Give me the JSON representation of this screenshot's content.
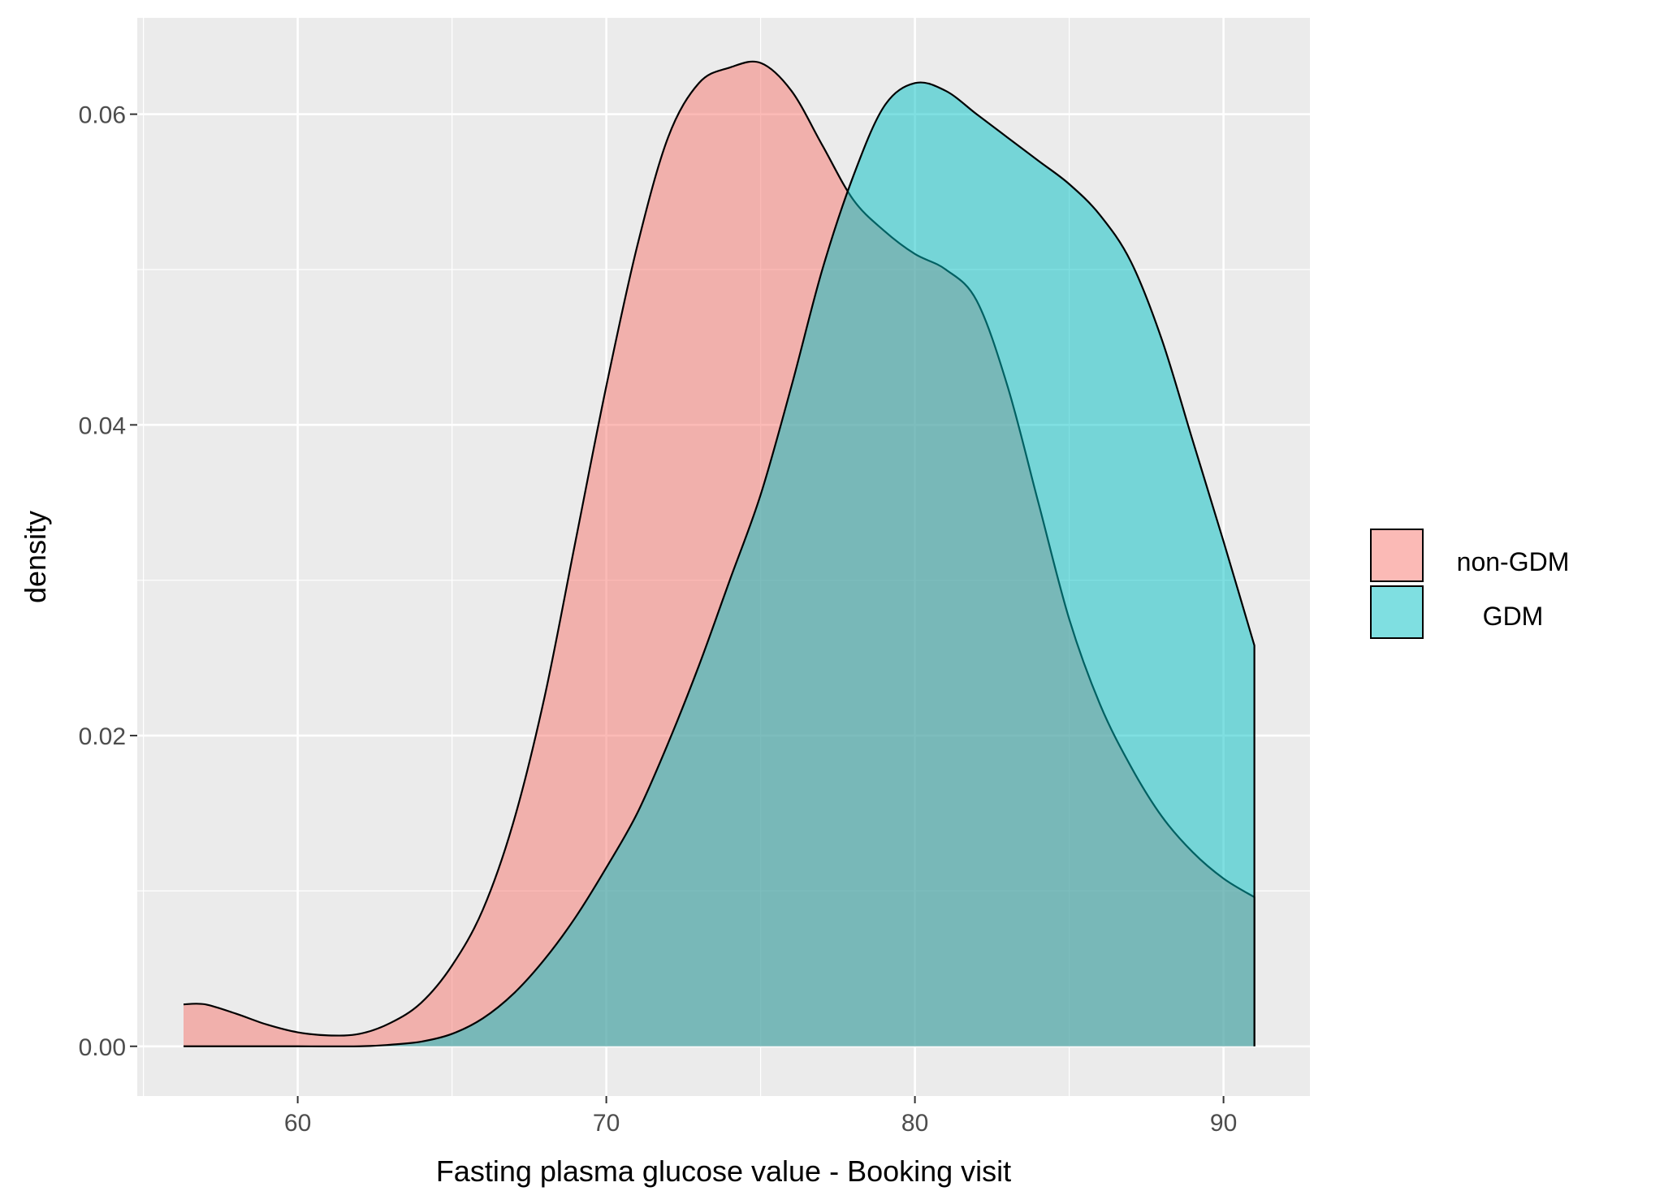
{
  "chart_data": {
    "type": "area",
    "xlabel": "Fasting plasma glucose value - Booking visit",
    "ylabel": "density",
    "xlim": [
      54.8,
      92.8
    ],
    "ylim": [
      -0.0032,
      0.0662
    ],
    "x_ticks": [
      60,
      70,
      80,
      90
    ],
    "x_tick_labels": [
      "60",
      "70",
      "80",
      "90"
    ],
    "y_ticks": [
      0.0,
      0.02,
      0.04,
      0.06
    ],
    "y_tick_labels": [
      "0.00",
      "0.02",
      "0.04",
      "0.06"
    ],
    "grid": true,
    "legend_position": "right",
    "series": [
      {
        "name": "non-GDM",
        "color": "#F8766D",
        "x": [
          56.3,
          57.0,
          58.0,
          59.0,
          60.0,
          61.0,
          62.0,
          63.0,
          64.0,
          65.0,
          66.0,
          67.0,
          68.0,
          69.0,
          70.0,
          71.0,
          72.0,
          73.0,
          74.0,
          75.0,
          76.0,
          77.0,
          78.0,
          79.0,
          80.0,
          81.0,
          82.0,
          83.0,
          84.0,
          85.0,
          86.0,
          87.0,
          88.0,
          89.0,
          90.0,
          91.0
        ],
        "y": [
          0.0027,
          0.0027,
          0.0021,
          0.0014,
          0.0009,
          0.0007,
          0.0008,
          0.0015,
          0.0028,
          0.0052,
          0.0088,
          0.0145,
          0.0225,
          0.0325,
          0.0425,
          0.0515,
          0.0585,
          0.062,
          0.063,
          0.0633,
          0.0615,
          0.058,
          0.0545,
          0.0525,
          0.051,
          0.05,
          0.048,
          0.0425,
          0.035,
          0.0275,
          0.022,
          0.018,
          0.0148,
          0.0125,
          0.0108,
          0.0096
        ]
      },
      {
        "name": "GDM",
        "color": "#00BFC4",
        "x": [
          56.3,
          58.0,
          60.0,
          62.0,
          63.0,
          64.0,
          65.0,
          66.0,
          67.0,
          68.0,
          69.0,
          70.0,
          71.0,
          72.0,
          73.0,
          74.0,
          75.0,
          76.0,
          77.0,
          78.0,
          79.0,
          80.0,
          81.0,
          82.0,
          83.0,
          84.0,
          85.0,
          86.0,
          87.0,
          88.0,
          89.0,
          90.0,
          91.0
        ],
        "y": [
          0.0,
          0.0,
          0.0,
          0.0,
          0.0001,
          0.0003,
          0.0008,
          0.0018,
          0.0034,
          0.0056,
          0.0083,
          0.0115,
          0.015,
          0.0195,
          0.0245,
          0.03,
          0.0355,
          0.0425,
          0.05,
          0.056,
          0.0605,
          0.062,
          0.0615,
          0.06,
          0.0585,
          0.057,
          0.0555,
          0.0535,
          0.0505,
          0.0455,
          0.039,
          0.0325,
          0.0258
        ]
      }
    ]
  }
}
